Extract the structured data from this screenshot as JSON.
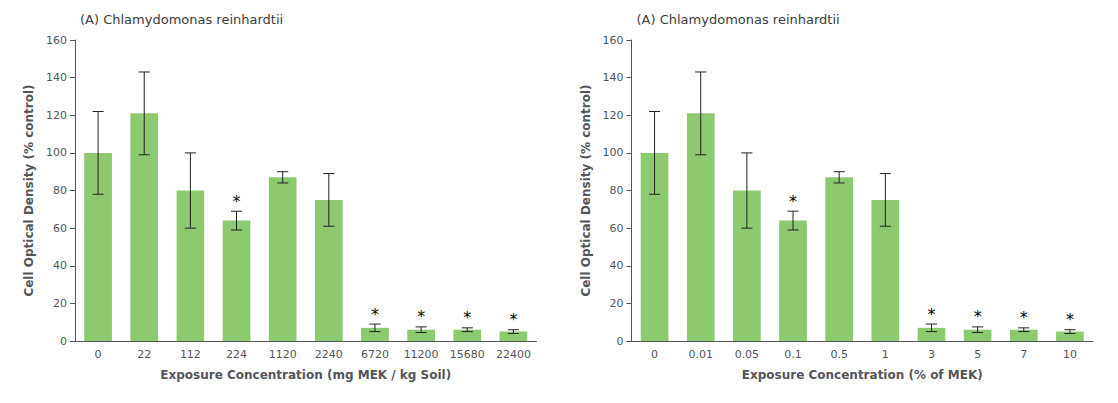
{
  "chart_data": [
    {
      "type": "bar",
      "title": "(A) Chlamydomonas reinhardtii",
      "xlabel": "Exposure Concentration (mg MEK / kg Soil)",
      "ylabel": "Cell Optical Density (% control)",
      "categories": [
        "0",
        "22",
        "112",
        "224",
        "1120",
        "2240",
        "6720",
        "11200",
        "15680",
        "22400"
      ],
      "values": [
        100,
        121,
        80,
        64,
        87,
        75,
        7,
        6,
        6,
        5
      ],
      "errors": [
        22,
        22,
        20,
        5,
        3,
        14,
        2,
        1.5,
        1,
        1
      ],
      "annotations": [
        {
          "category": "224",
          "text": "*"
        },
        {
          "category": "6720",
          "text": "*"
        },
        {
          "category": "11200",
          "text": "*"
        },
        {
          "category": "15680",
          "text": "*"
        },
        {
          "category": "22400",
          "text": "*"
        }
      ],
      "color": "#8dc96e",
      "ylim": [
        0,
        160
      ],
      "yticks": [
        0,
        20,
        40,
        60,
        80,
        100,
        120,
        140,
        160
      ],
      "grid": false
    },
    {
      "type": "bar",
      "title": "(A) Chlamydomonas reinhardtii",
      "xlabel": "Exposure Concentration (% of MEK)",
      "ylabel": "Cell Optical Density (% control)",
      "categories": [
        "0",
        "0.01",
        "0.05",
        "0.1",
        "0.5",
        "1",
        "3",
        "5",
        "7",
        "10"
      ],
      "values": [
        100,
        121,
        80,
        64,
        87,
        75,
        7,
        6,
        6,
        5
      ],
      "errors": [
        22,
        22,
        20,
        5,
        3,
        14,
        2,
        1.5,
        1,
        1
      ],
      "annotations": [
        {
          "category": "0.1",
          "text": "*"
        },
        {
          "category": "3",
          "text": "*"
        },
        {
          "category": "5",
          "text": "*"
        },
        {
          "category": "7",
          "text": "*"
        },
        {
          "category": "10",
          "text": "*"
        }
      ],
      "color": "#8dc96e",
      "ylim": [
        0,
        160
      ],
      "yticks": [
        0,
        20,
        40,
        60,
        80,
        100,
        120,
        140,
        160
      ],
      "grid": false
    }
  ]
}
